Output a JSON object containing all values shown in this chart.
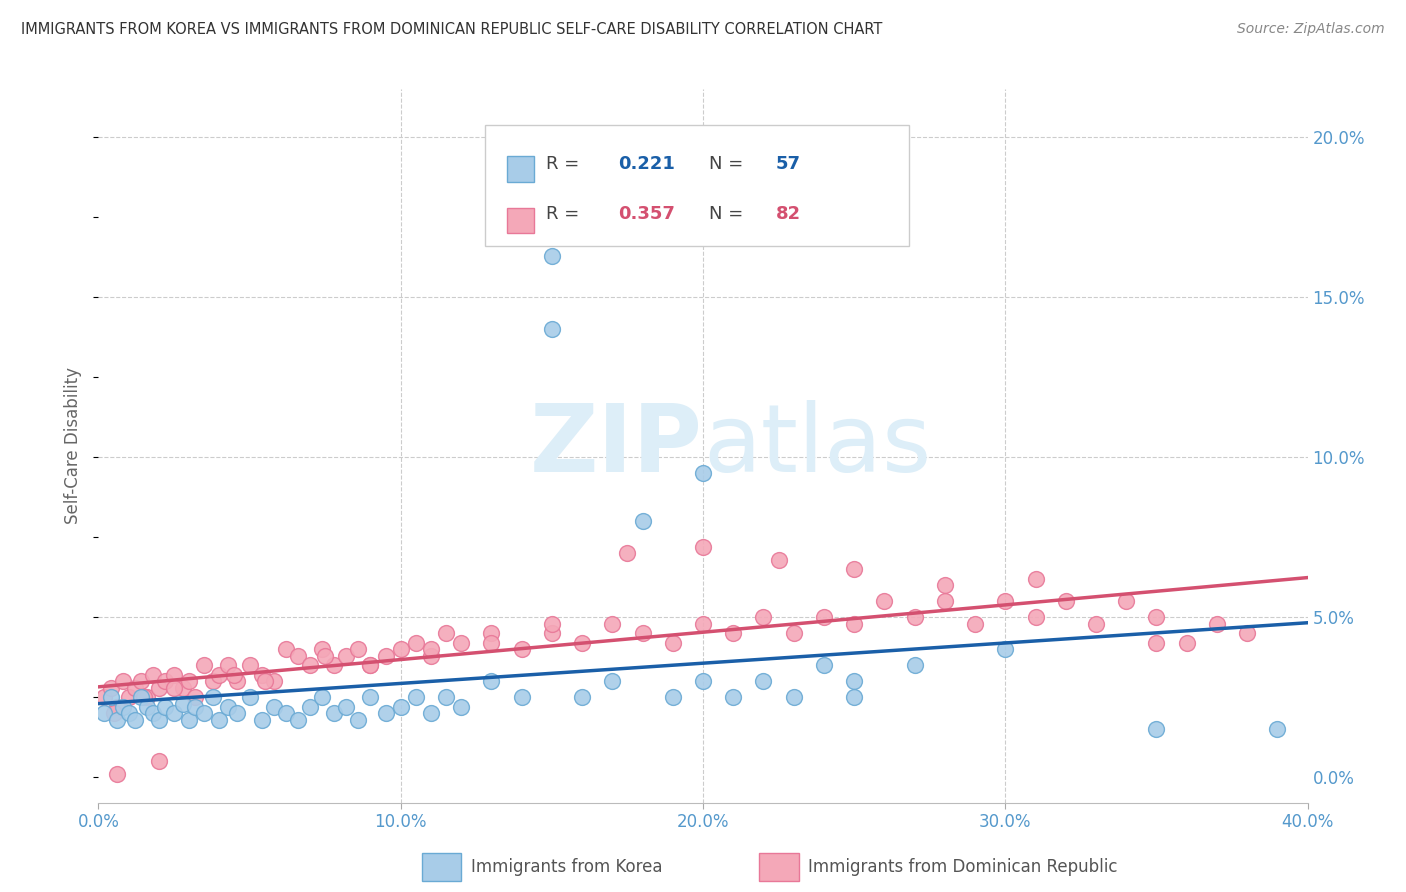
{
  "title": "IMMIGRANTS FROM KOREA VS IMMIGRANTS FROM DOMINICAN REPUBLIC SELF-CARE DISABILITY CORRELATION CHART",
  "source": "Source: ZipAtlas.com",
  "ylabel": "Self-Care Disability",
  "xlim": [
    0.0,
    0.4
  ],
  "ylim": [
    -0.008,
    0.215
  ],
  "korea_R": 0.221,
  "korea_N": 57,
  "dr_R": 0.357,
  "dr_N": 82,
  "korea_scatter_color": "#a8cce8",
  "dr_scatter_color": "#f4a8b8",
  "korea_edge_color": "#6aaad4",
  "dr_edge_color": "#e87898",
  "korea_line_color": "#1a5fa8",
  "dr_line_color": "#d45070",
  "watermark_color": "#ddeef8",
  "background_color": "#ffffff",
  "grid_color": "#cccccc",
  "title_color": "#333333",
  "axis_tick_color": "#5599cc",
  "ylabel_color": "#666666",
  "legend_box_color": "#e8e8e8",
  "korea_scatter_x": [
    0.002,
    0.004,
    0.006,
    0.008,
    0.01,
    0.012,
    0.014,
    0.016,
    0.018,
    0.02,
    0.022,
    0.025,
    0.028,
    0.03,
    0.032,
    0.035,
    0.038,
    0.04,
    0.043,
    0.046,
    0.05,
    0.054,
    0.058,
    0.062,
    0.066,
    0.07,
    0.074,
    0.078,
    0.082,
    0.086,
    0.09,
    0.095,
    0.1,
    0.105,
    0.11,
    0.115,
    0.12,
    0.13,
    0.14,
    0.15,
    0.16,
    0.17,
    0.18,
    0.19,
    0.2,
    0.21,
    0.22,
    0.23,
    0.24,
    0.25,
    0.27,
    0.3,
    0.15,
    0.2,
    0.25,
    0.35,
    0.39
  ],
  "korea_scatter_y": [
    0.02,
    0.025,
    0.018,
    0.022,
    0.02,
    0.018,
    0.025,
    0.022,
    0.02,
    0.018,
    0.022,
    0.02,
    0.023,
    0.018,
    0.022,
    0.02,
    0.025,
    0.018,
    0.022,
    0.02,
    0.025,
    0.018,
    0.022,
    0.02,
    0.018,
    0.022,
    0.025,
    0.02,
    0.022,
    0.018,
    0.025,
    0.02,
    0.022,
    0.025,
    0.02,
    0.025,
    0.022,
    0.03,
    0.025,
    0.14,
    0.025,
    0.03,
    0.08,
    0.025,
    0.03,
    0.025,
    0.03,
    0.025,
    0.035,
    0.03,
    0.035,
    0.04,
    0.163,
    0.095,
    0.025,
    0.015,
    0.015
  ],
  "dr_scatter_x": [
    0.002,
    0.004,
    0.006,
    0.008,
    0.01,
    0.012,
    0.014,
    0.016,
    0.018,
    0.02,
    0.022,
    0.025,
    0.028,
    0.03,
    0.032,
    0.035,
    0.038,
    0.04,
    0.043,
    0.046,
    0.05,
    0.054,
    0.058,
    0.062,
    0.066,
    0.07,
    0.074,
    0.078,
    0.082,
    0.086,
    0.09,
    0.095,
    0.1,
    0.105,
    0.11,
    0.115,
    0.12,
    0.13,
    0.14,
    0.15,
    0.16,
    0.17,
    0.18,
    0.19,
    0.2,
    0.21,
    0.22,
    0.23,
    0.24,
    0.25,
    0.26,
    0.27,
    0.28,
    0.29,
    0.3,
    0.31,
    0.32,
    0.33,
    0.34,
    0.35,
    0.36,
    0.37,
    0.38,
    0.005,
    0.015,
    0.025,
    0.045,
    0.055,
    0.075,
    0.09,
    0.11,
    0.13,
    0.15,
    0.175,
    0.2,
    0.225,
    0.25,
    0.28,
    0.31,
    0.35,
    0.006,
    0.02
  ],
  "dr_scatter_y": [
    0.025,
    0.028,
    0.022,
    0.03,
    0.025,
    0.028,
    0.03,
    0.025,
    0.032,
    0.028,
    0.03,
    0.032,
    0.028,
    0.03,
    0.025,
    0.035,
    0.03,
    0.032,
    0.035,
    0.03,
    0.035,
    0.032,
    0.03,
    0.04,
    0.038,
    0.035,
    0.04,
    0.035,
    0.038,
    0.04,
    0.035,
    0.038,
    0.04,
    0.042,
    0.038,
    0.045,
    0.042,
    0.045,
    0.04,
    0.045,
    0.042,
    0.048,
    0.045,
    0.042,
    0.048,
    0.045,
    0.05,
    0.045,
    0.05,
    0.048,
    0.055,
    0.05,
    0.055,
    0.048,
    0.055,
    0.05,
    0.055,
    0.048,
    0.055,
    0.05,
    0.042,
    0.048,
    0.045,
    0.02,
    0.025,
    0.028,
    0.032,
    0.03,
    0.038,
    0.035,
    0.04,
    0.042,
    0.048,
    0.07,
    0.072,
    0.068,
    0.065,
    0.06,
    0.062,
    0.042,
    0.001,
    0.005
  ]
}
